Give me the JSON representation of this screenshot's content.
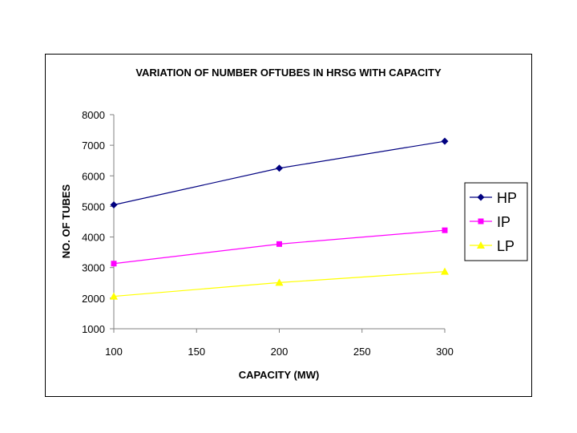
{
  "chart_data": {
    "type": "line",
    "title": "VARIATION OF NUMBER OFTUBES IN HRSG WITH CAPACITY",
    "xlabel": "CAPACITY (MW)",
    "ylabel": "NO. OF TUBES",
    "xlim": [
      100,
      300
    ],
    "ylim": [
      1000,
      8000
    ],
    "xticks": [
      100,
      150,
      200,
      250,
      300
    ],
    "yticks": [
      1000,
      2000,
      3000,
      4000,
      5000,
      6000,
      7000,
      8000
    ],
    "x": [
      100,
      200,
      300
    ],
    "series": [
      {
        "name": "HP",
        "values": [
          5050,
          6250,
          7130
        ],
        "color": "#000080",
        "marker": "diamond"
      },
      {
        "name": "IP",
        "values": [
          3130,
          3770,
          4220
        ],
        "color": "#ff00ff",
        "marker": "square"
      },
      {
        "name": "LP",
        "values": [
          2060,
          2510,
          2870
        ],
        "color": "#ffff00",
        "marker": "triangle"
      }
    ],
    "grid": false,
    "legend": "right"
  }
}
